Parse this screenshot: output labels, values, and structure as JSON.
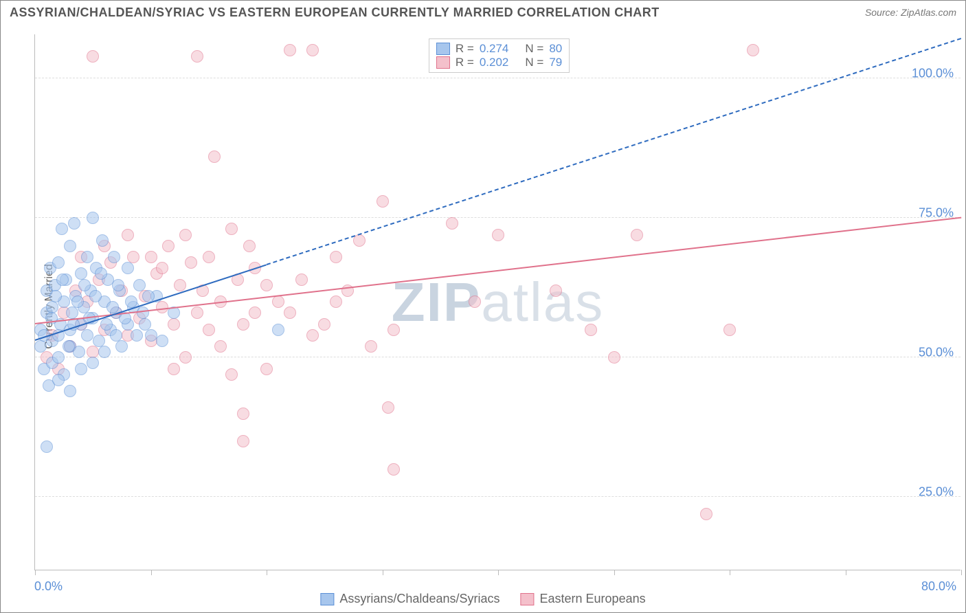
{
  "title": "ASSYRIAN/CHALDEAN/SYRIAC VS EASTERN EUROPEAN CURRENTLY MARRIED CORRELATION CHART",
  "source": "Source: ZipAtlas.com",
  "ylabel": "Currently Married",
  "watermark": {
    "z": "ZIP",
    "rest": "atlas",
    "z_color": "#c9d4e0",
    "rest_color": "#d9e0e8"
  },
  "chart": {
    "type": "scatter",
    "xlim": [
      0,
      80
    ],
    "ylim": [
      12,
      108
    ],
    "ygrid": [
      25,
      50,
      75,
      100
    ],
    "ytick_labels": [
      "25.0%",
      "50.0%",
      "75.0%",
      "100.0%"
    ],
    "xticks": [
      0,
      10,
      20,
      30,
      40,
      50,
      60,
      70,
      80
    ],
    "xtick_labels": {
      "0": "0.0%",
      "80": "80.0%"
    },
    "background_color": "#ffffff",
    "grid_color": "#dddddd",
    "axis_color": "#bbbbbb",
    "tick_label_color": "#5b8fd6",
    "marker_radius": 9,
    "marker_opacity": 0.55
  },
  "series": [
    {
      "name": "Assyrians/Chaldeans/Syriacs",
      "fill": "#a7c6ed",
      "stroke": "#5b8fd6",
      "line_color": "#2e6bbf",
      "R": "0.274",
      "N": "80",
      "trend": {
        "x1": 0,
        "y1": 53,
        "x2": 20,
        "y2": 66.5,
        "dash_to_x": 80,
        "dash_to_y": 107
      },
      "points": [
        [
          0.5,
          52
        ],
        [
          0.5,
          55
        ],
        [
          0.8,
          48
        ],
        [
          1,
          58
        ],
        [
          1,
          62
        ],
        [
          1.2,
          45
        ],
        [
          1.3,
          66
        ],
        [
          1.5,
          53
        ],
        [
          1.5,
          59
        ],
        [
          1.5,
          49
        ],
        [
          1.7,
          63
        ],
        [
          2,
          54
        ],
        [
          2,
          67
        ],
        [
          2,
          50
        ],
        [
          2.2,
          56
        ],
        [
          2.3,
          73
        ],
        [
          2.5,
          60
        ],
        [
          2.5,
          47
        ],
        [
          2.7,
          64
        ],
        [
          3,
          55
        ],
        [
          3,
          70
        ],
        [
          3,
          52
        ],
        [
          3.2,
          58
        ],
        [
          3.4,
          74
        ],
        [
          3.5,
          61
        ],
        [
          3.8,
          51
        ],
        [
          4,
          65
        ],
        [
          4,
          56
        ],
        [
          4.2,
          59
        ],
        [
          4.5,
          68
        ],
        [
          4.5,
          54
        ],
        [
          4.8,
          62
        ],
        [
          5,
          75
        ],
        [
          5,
          57
        ],
        [
          5.3,
          66
        ],
        [
          5.5,
          53
        ],
        [
          5.8,
          71
        ],
        [
          6,
          60
        ],
        [
          6.3,
          64
        ],
        [
          6.5,
          55
        ],
        [
          6.8,
          68
        ],
        [
          7,
          58
        ],
        [
          7.3,
          62
        ],
        [
          7.5,
          52
        ],
        [
          8,
          66
        ],
        [
          8.5,
          59
        ],
        [
          9,
          63
        ],
        [
          9.5,
          56
        ],
        [
          10,
          54
        ],
        [
          10.5,
          61
        ],
        [
          11,
          53
        ],
        [
          12,
          58
        ],
        [
          1,
          34
        ],
        [
          2,
          46
        ],
        [
          3,
          44
        ],
        [
          4,
          48
        ],
        [
          5,
          49
        ],
        [
          6,
          51
        ],
        [
          7,
          54
        ],
        [
          8,
          56
        ],
        [
          0.8,
          54
        ],
        [
          1.4,
          57
        ],
        [
          1.8,
          61
        ],
        [
          2.4,
          64
        ],
        [
          2.9,
          52
        ],
        [
          3.3,
          56
        ],
        [
          3.7,
          60
        ],
        [
          4.3,
          63
        ],
        [
          4.7,
          57
        ],
        [
          5.2,
          61
        ],
        [
          5.7,
          65
        ],
        [
          6.2,
          56
        ],
        [
          6.7,
          59
        ],
        [
          7.2,
          63
        ],
        [
          7.8,
          57
        ],
        [
          8.3,
          60
        ],
        [
          8.8,
          54
        ],
        [
          9.3,
          58
        ],
        [
          9.8,
          61
        ],
        [
          21,
          55
        ]
      ]
    },
    {
      "name": "Eastern Europeans",
      "fill": "#f4c0cb",
      "stroke": "#e0718b",
      "line_color": "#e0718b",
      "R": "0.202",
      "N": "79",
      "trend": {
        "x1": 0,
        "y1": 56,
        "x2": 80,
        "y2": 75
      },
      "points": [
        [
          1,
          50
        ],
        [
          1.5,
          54
        ],
        [
          2,
          48
        ],
        [
          2.5,
          58
        ],
        [
          3,
          52
        ],
        [
          3.5,
          62
        ],
        [
          4,
          56
        ],
        [
          4.5,
          60
        ],
        [
          5,
          51
        ],
        [
          5.5,
          64
        ],
        [
          6,
          55
        ],
        [
          6.5,
          67
        ],
        [
          7,
          58
        ],
        [
          7.5,
          62
        ],
        [
          8,
          54
        ],
        [
          8.5,
          68
        ],
        [
          9,
          57
        ],
        [
          9.5,
          61
        ],
        [
          10,
          53
        ],
        [
          10.5,
          65
        ],
        [
          11,
          59
        ],
        [
          11.5,
          70
        ],
        [
          12,
          56
        ],
        [
          12.5,
          63
        ],
        [
          13,
          50
        ],
        [
          13.5,
          67
        ],
        [
          14,
          58
        ],
        [
          14.5,
          62
        ],
        [
          15,
          55
        ],
        [
          15.5,
          86
        ],
        [
          16,
          60
        ],
        [
          17,
          47
        ],
        [
          17.5,
          64
        ],
        [
          18,
          56
        ],
        [
          18.5,
          70
        ],
        [
          19,
          58
        ],
        [
          20,
          63
        ],
        [
          22,
          105
        ],
        [
          24,
          105
        ],
        [
          26,
          68
        ],
        [
          28,
          71
        ],
        [
          29,
          52
        ],
        [
          30,
          78
        ],
        [
          30.5,
          41
        ],
        [
          31,
          55
        ],
        [
          31,
          30
        ],
        [
          36,
          74
        ],
        [
          38,
          60
        ],
        [
          40,
          72
        ],
        [
          45,
          62
        ],
        [
          48,
          55
        ],
        [
          50,
          50
        ],
        [
          52,
          72
        ],
        [
          58,
          22
        ],
        [
          60,
          55
        ],
        [
          62,
          105
        ],
        [
          5,
          104
        ],
        [
          14,
          104
        ],
        [
          18,
          35
        ],
        [
          18,
          40
        ],
        [
          12,
          48
        ],
        [
          16,
          52
        ],
        [
          20,
          48
        ],
        [
          22,
          58
        ],
        [
          24,
          54
        ],
        [
          26,
          60
        ],
        [
          13,
          72
        ],
        [
          15,
          68
        ],
        [
          17,
          73
        ],
        [
          10,
          68
        ],
        [
          8,
          72
        ],
        [
          6,
          70
        ],
        [
          4,
          68
        ],
        [
          11,
          66
        ],
        [
          19,
          66
        ],
        [
          21,
          60
        ],
        [
          23,
          64
        ],
        [
          25,
          56
        ],
        [
          27,
          62
        ]
      ]
    }
  ],
  "r_legend": {
    "label_R": "R  =",
    "label_N": "N  ="
  },
  "bottom_legend": [
    {
      "label": "Assyrians/Chaldeans/Syriacs",
      "fill": "#a7c6ed",
      "stroke": "#5b8fd6"
    },
    {
      "label": "Eastern Europeans",
      "fill": "#f4c0cb",
      "stroke": "#e0718b"
    }
  ]
}
